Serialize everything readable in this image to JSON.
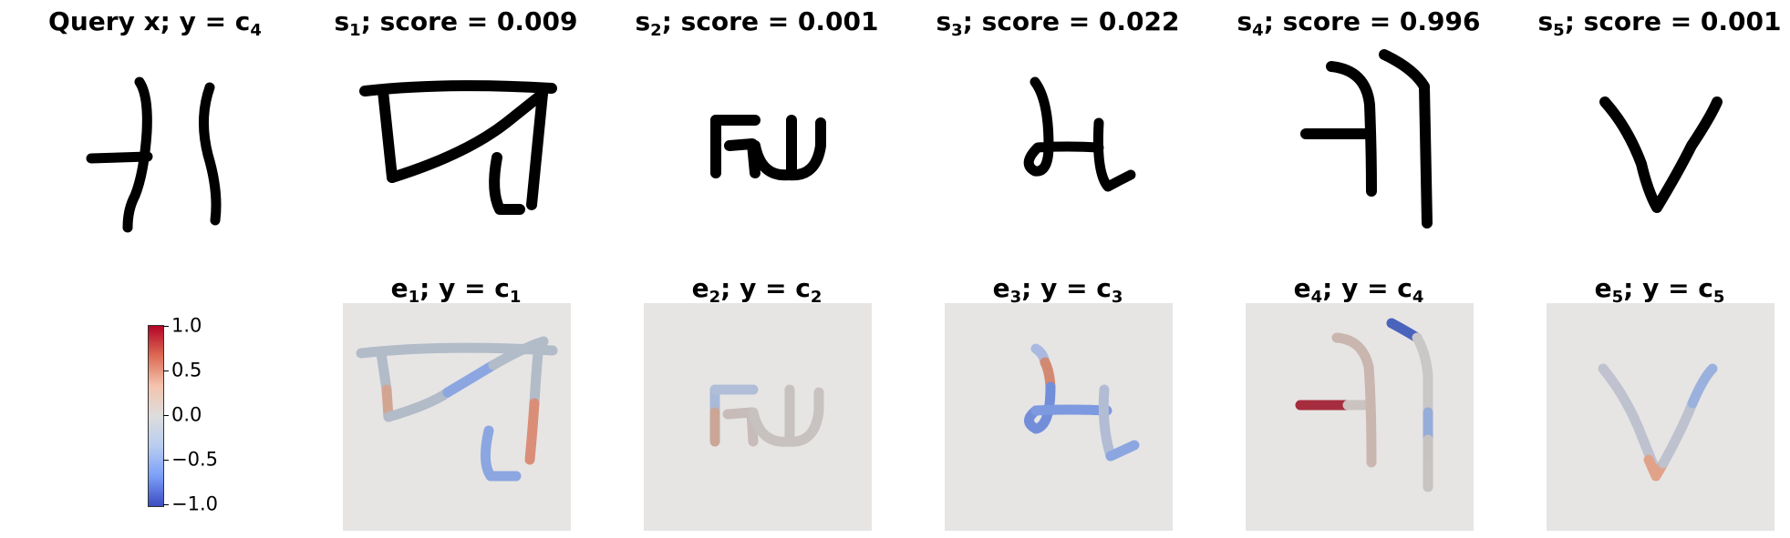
{
  "top_row": [
    {
      "label": "Query x; y = c",
      "sub": "4"
    },
    {
      "label": "s",
      "sub": "1",
      "rest": "; score = 0.009"
    },
    {
      "label": "s",
      "sub": "2",
      "rest": "; score = 0.001"
    },
    {
      "label": "s",
      "sub": "3",
      "rest": "; score = 0.022"
    },
    {
      "label": "s",
      "sub": "4",
      "rest": "; score = 0.996"
    },
    {
      "label": "s",
      "sub": "5",
      "rest": "; score = 0.001"
    }
  ],
  "bottom_row": [
    {
      "label": "e",
      "sub": "1",
      "mid": "; y = c",
      "sub2": "1"
    },
    {
      "label": "e",
      "sub": "2",
      "mid": "; y = c",
      "sub2": "2"
    },
    {
      "label": "e",
      "sub": "3",
      "mid": "; y = c",
      "sub2": "3"
    },
    {
      "label": "e",
      "sub": "4",
      "mid": "; y = c",
      "sub2": "4"
    },
    {
      "label": "e",
      "sub": "5",
      "mid": "; y = c",
      "sub2": "5"
    }
  ],
  "colorbar": {
    "ticks": [
      "1.0",
      "0.5",
      "0.0",
      "−0.5",
      "−1.0"
    ],
    "colormap": [
      "#b40426",
      "#dddddd",
      "#3b4cc0"
    ]
  }
}
